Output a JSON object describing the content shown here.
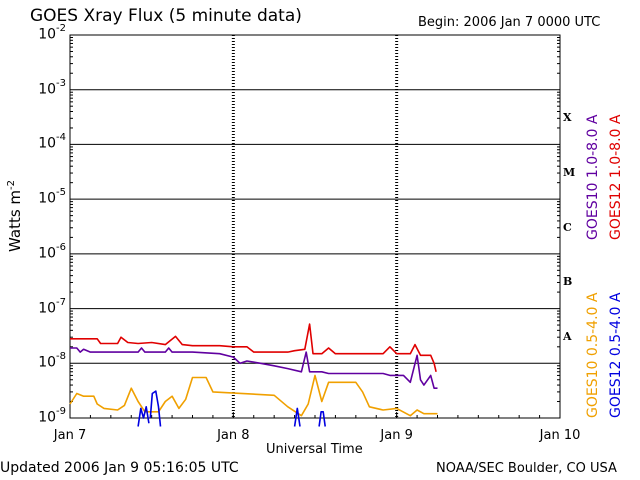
{
  "header": {
    "title": "GOES Xray Flux (5 minute data)",
    "begin": "Begin:  2006 Jan 7 0000 UTC"
  },
  "footer": {
    "updated": "Updated 2006 Jan  9 05:16:05 UTC",
    "credit": "NOAA/SEC Boulder, CO USA"
  },
  "chart_data": {
    "type": "line",
    "title": "GOES Xray Flux (5 minute data)",
    "xlabel": "Universal Time",
    "ylabel": "Watts m",
    "ylabel_exp": "-2",
    "yscale": "log",
    "ylim": [
      1e-09,
      0.01
    ],
    "xlim_hours": [
      0,
      72
    ],
    "x_ticks": [
      {
        "label": "Jan 7",
        "hour": 0
      },
      {
        "label": "Jan 8",
        "hour": 24
      },
      {
        "label": "Jan 9",
        "hour": 48
      },
      {
        "label": "Jan 10",
        "hour": 72
      }
    ],
    "y_ticks": [
      {
        "base": "10",
        "exp": "-2",
        "value": 0.01
      },
      {
        "base": "10",
        "exp": "-3",
        "value": 0.001
      },
      {
        "base": "10",
        "exp": "-4",
        "value": 0.0001
      },
      {
        "base": "10",
        "exp": "-5",
        "value": 1e-05
      },
      {
        "base": "10",
        "exp": "-6",
        "value": 1e-06
      },
      {
        "base": "10",
        "exp": "-7",
        "value": 1e-07
      },
      {
        "base": "10",
        "exp": "-8",
        "value": 1e-08
      },
      {
        "base": "10",
        "exp": "-9",
        "value": 1e-09
      }
    ],
    "flare_classes": [
      {
        "label": "X",
        "value": 0.0003
      },
      {
        "label": "M",
        "value": 3e-05
      },
      {
        "label": "C",
        "value": 3e-06
      },
      {
        "label": "B",
        "value": 3e-07
      },
      {
        "label": "A",
        "value": 3e-08
      }
    ],
    "series": [
      {
        "name": "GOES12 1.0-8.0 A",
        "color": "#e00000",
        "points": [
          [
            0,
            2.8e-08
          ],
          [
            4,
            2.8e-08
          ],
          [
            4.5,
            2.3e-08
          ],
          [
            7,
            2.3e-08
          ],
          [
            7.5,
            3e-08
          ],
          [
            8.5,
            2.4e-08
          ],
          [
            10,
            2.3e-08
          ],
          [
            12,
            2.4e-08
          ],
          [
            14,
            2.2e-08
          ],
          [
            15.5,
            3.1e-08
          ],
          [
            16.5,
            2.2e-08
          ],
          [
            18,
            2.1e-08
          ],
          [
            22,
            2.1e-08
          ],
          [
            24,
            2e-08
          ],
          [
            26,
            2e-08
          ],
          [
            27,
            1.6e-08
          ],
          [
            32,
            1.6e-08
          ],
          [
            33,
            1.7e-08
          ],
          [
            34.5,
            1.8e-08
          ],
          [
            35.2,
            5.2e-08
          ],
          [
            35.7,
            1.5e-08
          ],
          [
            37,
            1.5e-08
          ],
          [
            38,
            1.9e-08
          ],
          [
            39,
            1.5e-08
          ],
          [
            46,
            1.5e-08
          ],
          [
            47,
            2e-08
          ],
          [
            48,
            1.5e-08
          ],
          [
            50,
            1.5e-08
          ],
          [
            50.7,
            2.2e-08
          ],
          [
            51.5,
            1.4e-08
          ],
          [
            53,
            1.4e-08
          ],
          [
            53.5,
            1e-08
          ],
          [
            53.8,
            7e-09
          ]
        ]
      },
      {
        "name": "GOES10 1.0-8.0 A",
        "color": "#6000a0",
        "points": [
          [
            0,
            1.9e-08
          ],
          [
            1,
            1.9e-08
          ],
          [
            1.5,
            1.6e-08
          ],
          [
            2,
            1.8e-08
          ],
          [
            3,
            1.6e-08
          ],
          [
            10,
            1.6e-08
          ],
          [
            10.5,
            1.9e-08
          ],
          [
            11,
            1.6e-08
          ],
          [
            14,
            1.6e-08
          ],
          [
            14.5,
            1.9e-08
          ],
          [
            15,
            1.6e-08
          ],
          [
            18,
            1.6e-08
          ],
          [
            22,
            1.5e-08
          ],
          [
            24,
            1.3e-08
          ],
          [
            25,
            1e-08
          ],
          [
            26,
            1.1e-08
          ],
          [
            28,
            1e-08
          ],
          [
            30,
            9e-09
          ],
          [
            32,
            8e-09
          ],
          [
            34,
            7e-09
          ],
          [
            34.7,
            1.6e-08
          ],
          [
            35.2,
            7e-09
          ],
          [
            37,
            7e-09
          ],
          [
            38,
            6.5e-09
          ],
          [
            46,
            6.5e-09
          ],
          [
            47,
            6e-09
          ],
          [
            49,
            6e-09
          ],
          [
            50,
            4.5e-09
          ],
          [
            51,
            1.4e-08
          ],
          [
            51.5,
            5e-09
          ],
          [
            52,
            4e-09
          ],
          [
            53,
            6e-09
          ],
          [
            53.5,
            3.5e-09
          ],
          [
            54,
            3.5e-09
          ]
        ]
      },
      {
        "name": "GOES10 0.5-4.0 A",
        "color": "#f0a000",
        "points": [
          [
            0,
            1.8e-09
          ],
          [
            1,
            2.8e-09
          ],
          [
            2,
            2.5e-09
          ],
          [
            3.5,
            2.5e-09
          ],
          [
            4,
            1.8e-09
          ],
          [
            5,
            1.5e-09
          ],
          [
            7,
            1.4e-09
          ],
          [
            8,
            1.7e-09
          ],
          [
            9,
            3.5e-09
          ],
          [
            10,
            2e-09
          ],
          [
            11,
            1.3e-09
          ],
          [
            13,
            1.3e-09
          ],
          [
            14,
            2e-09
          ],
          [
            15,
            2.5e-09
          ],
          [
            16,
            1.5e-09
          ],
          [
            17,
            2.2e-09
          ],
          [
            18,
            5.5e-09
          ],
          [
            20,
            5.5e-09
          ],
          [
            21,
            3e-09
          ],
          [
            30,
            2.6e-09
          ],
          [
            32,
            1.6e-09
          ],
          [
            34,
            1.1e-09
          ],
          [
            35,
            1.8e-09
          ],
          [
            36,
            6e-09
          ],
          [
            37,
            2e-09
          ],
          [
            38,
            4.5e-09
          ],
          [
            42,
            4.5e-09
          ],
          [
            43,
            3e-09
          ],
          [
            44,
            1.6e-09
          ],
          [
            46,
            1.4e-09
          ],
          [
            48,
            1.5e-09
          ],
          [
            50,
            1.1e-09
          ],
          [
            51,
            1.4e-09
          ],
          [
            52,
            1.2e-09
          ],
          [
            54,
            1.2e-09
          ]
        ]
      },
      {
        "name": "GOES12 0.5-4.0 A",
        "color": "#0000e0",
        "segments": [
          [
            [
              10,
              7e-10
            ],
            [
              10.4,
              1.5e-09
            ],
            [
              10.8,
              1e-09
            ],
            [
              11.2,
              1.6e-09
            ],
            [
              11.6,
              8e-10
            ]
          ],
          [
            [
              11.8,
              1e-09
            ],
            [
              12.1,
              2.8e-09
            ],
            [
              12.6,
              3.1e-09
            ],
            [
              13,
              1.6e-09
            ],
            [
              13.3,
              7e-10
            ]
          ],
          [
            [
              33,
              7e-10
            ],
            [
              33.4,
              1.5e-09
            ],
            [
              33.8,
              7e-10
            ]
          ],
          [
            [
              36.6,
              7e-10
            ],
            [
              36.9,
              1.3e-09
            ],
            [
              37.2,
              1.3e-09
            ],
            [
              37.5,
              7e-10
            ]
          ]
        ]
      }
    ]
  },
  "legend": [
    {
      "text": "GOES10 1.0-8.0 A",
      "color": "#6000a0"
    },
    {
      "text": "GOES12 1.0-8.0 A",
      "color": "#e00000"
    },
    {
      "text": "GOES10 0.5-4.0 A",
      "color": "#f0a000"
    },
    {
      "text": "GOES12 0.5-4.0 A",
      "color": "#0000e0"
    }
  ]
}
